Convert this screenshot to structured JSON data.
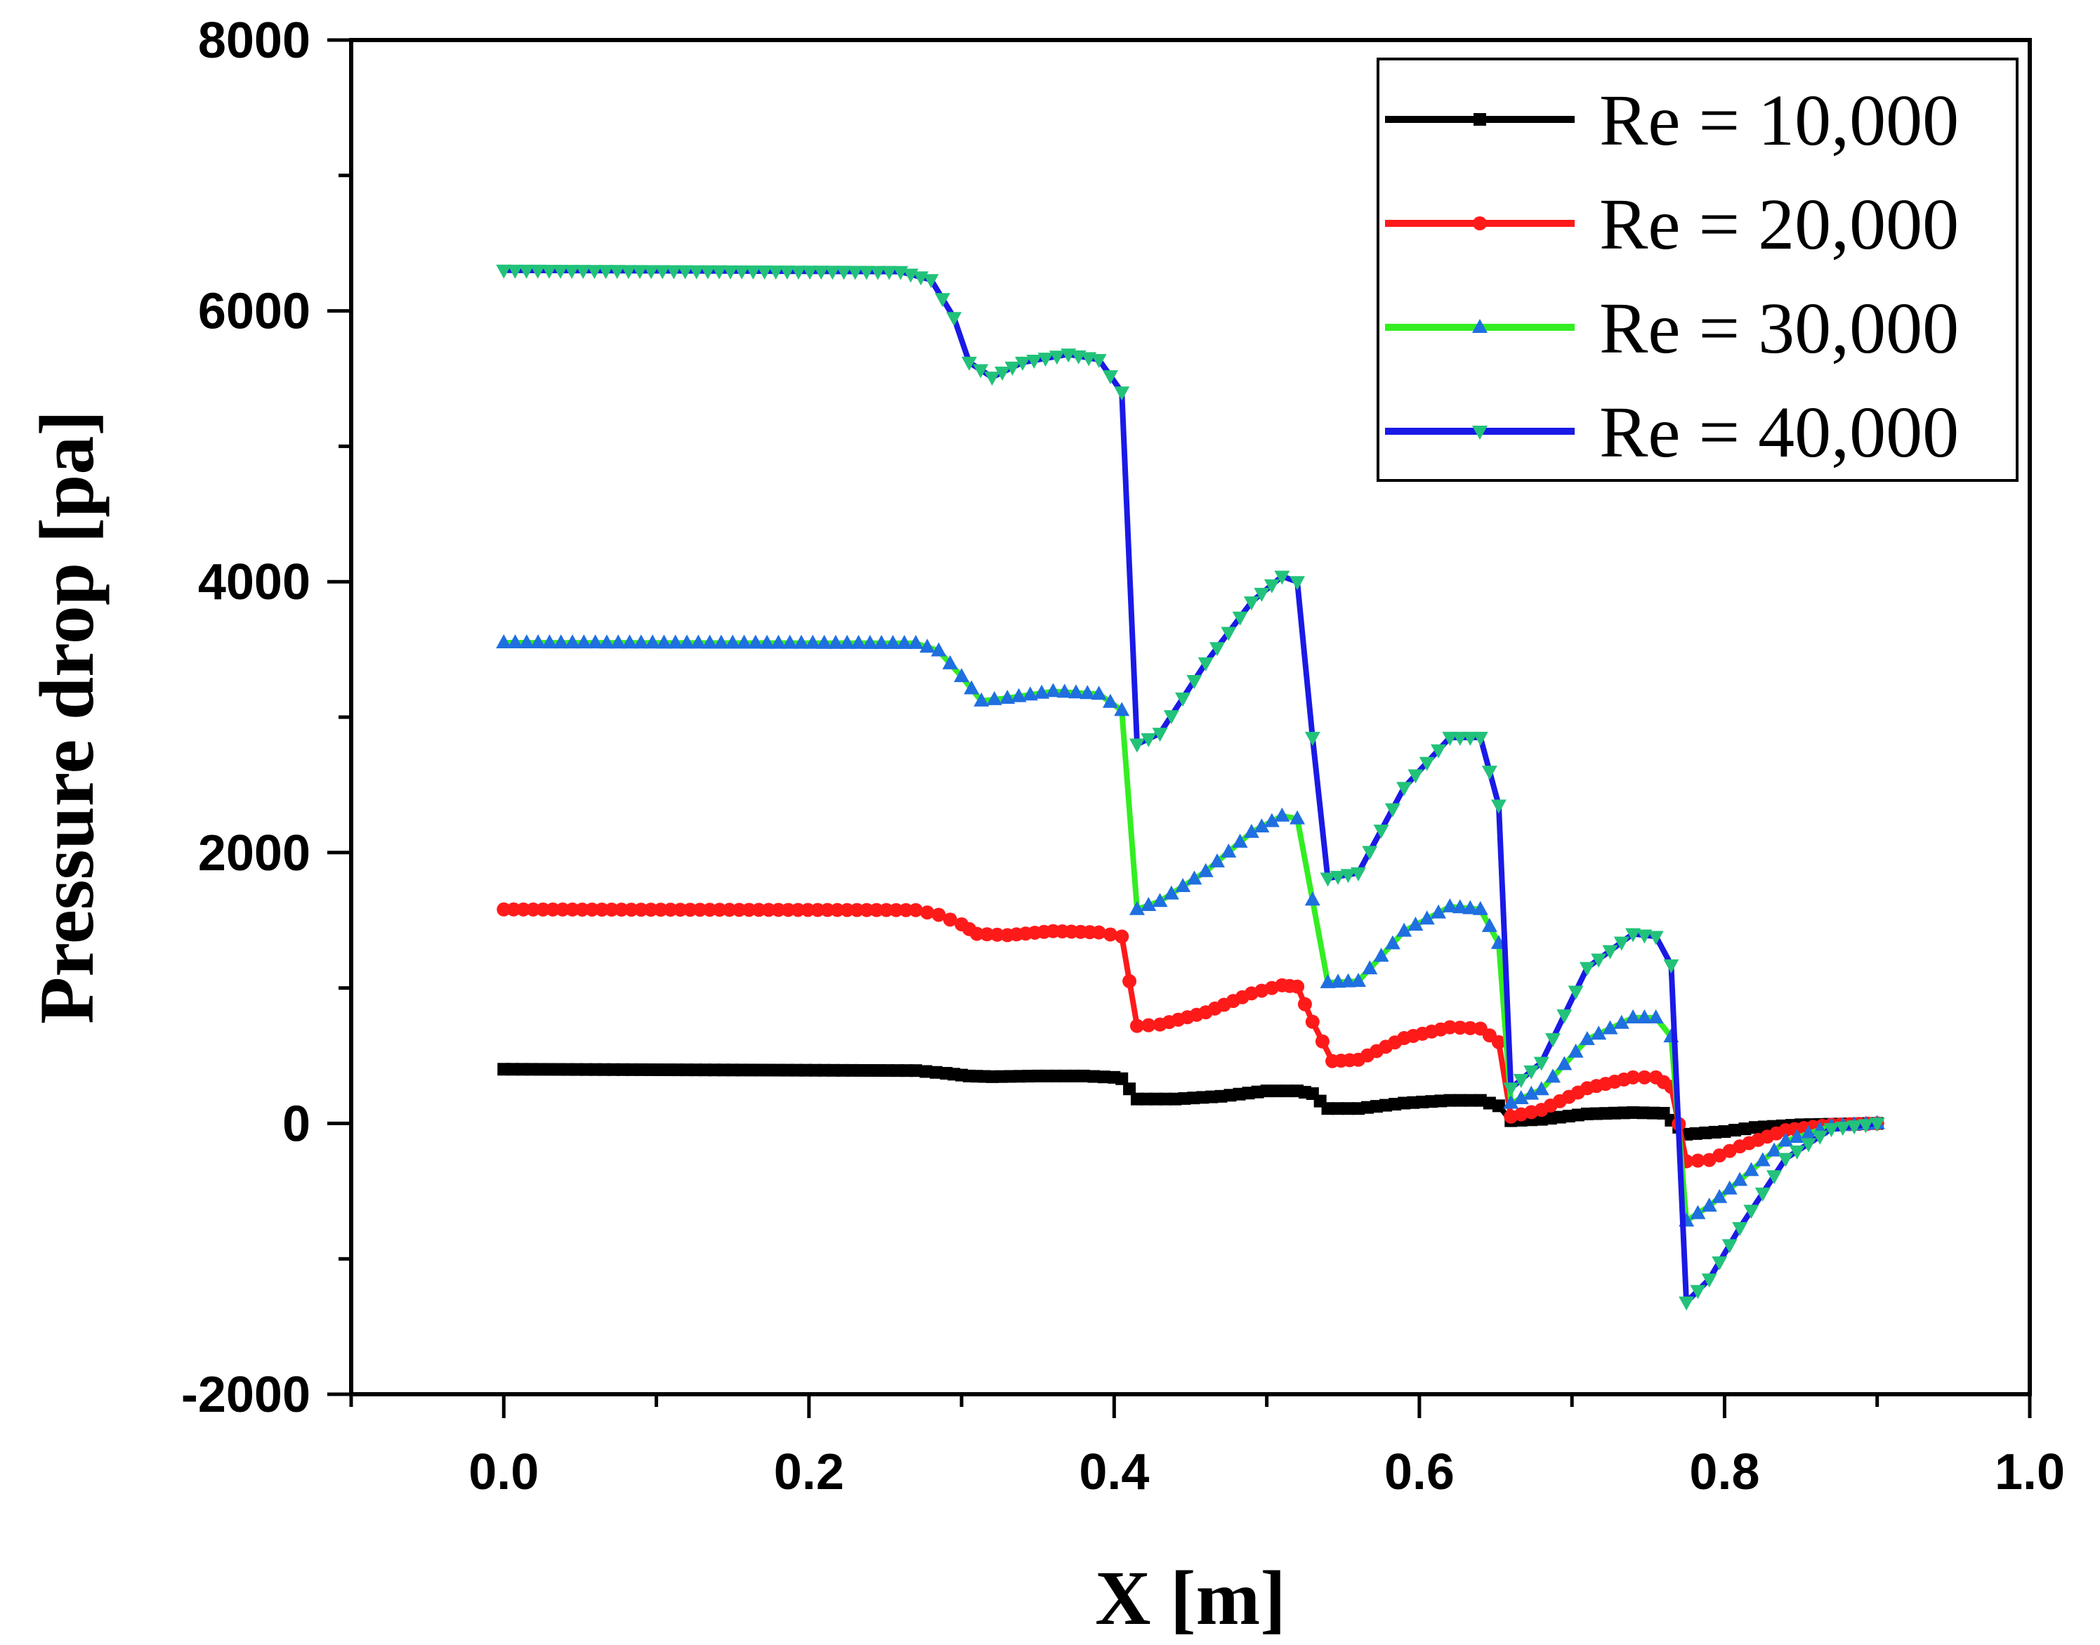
{
  "chart_data": {
    "type": "line",
    "xlabel": "X [m]",
    "ylabel": "Pressure drop [pa]",
    "xlim": [
      -0.1,
      1.0
    ],
    "ylim": [
      -2000,
      8000
    ],
    "xticks": [
      0.0,
      0.2,
      0.4,
      0.6,
      0.8,
      1.0
    ],
    "xtick_labels": [
      "0.0",
      "0.2",
      "0.4",
      "0.6",
      "0.8",
      "1.0"
    ],
    "yticks": [
      -2000,
      0,
      2000,
      4000,
      6000,
      8000
    ],
    "ytick_labels": [
      "-2000",
      "0",
      "2000",
      "4000",
      "6000",
      "8000"
    ],
    "legend_position": "top-right",
    "series": [
      {
        "name": "Re = 10,000",
        "color": "#000000",
        "marker": "square",
        "points": [
          [
            0,
            400
          ],
          [
            0.27,
            390
          ],
          [
            0.29,
            370
          ],
          [
            0.305,
            350
          ],
          [
            0.32,
            345
          ],
          [
            0.35,
            350
          ],
          [
            0.38,
            350
          ],
          [
            0.4,
            340
          ],
          [
            0.405,
            330
          ],
          [
            0.415,
            180
          ],
          [
            0.44,
            180
          ],
          [
            0.47,
            200
          ],
          [
            0.5,
            240
          ],
          [
            0.52,
            240
          ],
          [
            0.53,
            220
          ],
          [
            0.54,
            110
          ],
          [
            0.56,
            110
          ],
          [
            0.59,
            150
          ],
          [
            0.62,
            170
          ],
          [
            0.64,
            170
          ],
          [
            0.652,
            130
          ],
          [
            0.66,
            20
          ],
          [
            0.68,
            30
          ],
          [
            0.71,
            70
          ],
          [
            0.74,
            80
          ],
          [
            0.76,
            75
          ],
          [
            0.775,
            -80
          ],
          [
            0.8,
            -60
          ],
          [
            0.82,
            -30
          ],
          [
            0.85,
            -10
          ],
          [
            0.9,
            0
          ]
        ]
      },
      {
        "name": "Re = 20,000",
        "color": "#ff1a1a",
        "marker": "circle",
        "points": [
          [
            0,
            1580
          ],
          [
            0.27,
            1575
          ],
          [
            0.285,
            1540
          ],
          [
            0.3,
            1470
          ],
          [
            0.31,
            1400
          ],
          [
            0.33,
            1390
          ],
          [
            0.36,
            1420
          ],
          [
            0.39,
            1410
          ],
          [
            0.405,
            1380
          ],
          [
            0.415,
            720
          ],
          [
            0.43,
            730
          ],
          [
            0.46,
            820
          ],
          [
            0.49,
            960
          ],
          [
            0.51,
            1020
          ],
          [
            0.52,
            1010
          ],
          [
            0.53,
            750
          ],
          [
            0.543,
            460
          ],
          [
            0.56,
            470
          ],
          [
            0.59,
            630
          ],
          [
            0.62,
            710
          ],
          [
            0.64,
            700
          ],
          [
            0.652,
            600
          ],
          [
            0.66,
            50
          ],
          [
            0.68,
            100
          ],
          [
            0.71,
            260
          ],
          [
            0.74,
            340
          ],
          [
            0.755,
            340
          ],
          [
            0.765,
            270
          ],
          [
            0.775,
            -280
          ],
          [
            0.79,
            -270
          ],
          [
            0.81,
            -170
          ],
          [
            0.84,
            -50
          ],
          [
            0.87,
            -10
          ],
          [
            0.9,
            0
          ]
        ]
      },
      {
        "name": "Re = 30,000",
        "color": "#33ee22",
        "marker": "triangle-up",
        "points": [
          [
            0,
            3550
          ],
          [
            0.27,
            3545
          ],
          [
            0.285,
            3490
          ],
          [
            0.3,
            3300
          ],
          [
            0.313,
            3120
          ],
          [
            0.33,
            3140
          ],
          [
            0.36,
            3190
          ],
          [
            0.39,
            3170
          ],
          [
            0.405,
            3050
          ],
          [
            0.415,
            1580
          ],
          [
            0.43,
            1640
          ],
          [
            0.46,
            1860
          ],
          [
            0.49,
            2150
          ],
          [
            0.51,
            2270
          ],
          [
            0.52,
            2250
          ],
          [
            0.53,
            1650
          ],
          [
            0.54,
            1040
          ],
          [
            0.56,
            1050
          ],
          [
            0.59,
            1420
          ],
          [
            0.62,
            1600
          ],
          [
            0.64,
            1580
          ],
          [
            0.652,
            1330
          ],
          [
            0.66,
            150
          ],
          [
            0.68,
            250
          ],
          [
            0.71,
            620
          ],
          [
            0.74,
            780
          ],
          [
            0.755,
            780
          ],
          [
            0.765,
            640
          ],
          [
            0.775,
            -720
          ],
          [
            0.79,
            -610
          ],
          [
            0.81,
            -420
          ],
          [
            0.84,
            -130
          ],
          [
            0.87,
            -20
          ],
          [
            0.9,
            0
          ]
        ]
      },
      {
        "name": "Re = 40,000",
        "color": "#1a1ae6",
        "marker": "triangle-down",
        "points": [
          [
            0,
            6300
          ],
          [
            0.26,
            6290
          ],
          [
            0.28,
            6230
          ],
          [
            0.295,
            5950
          ],
          [
            0.305,
            5620
          ],
          [
            0.32,
            5510
          ],
          [
            0.34,
            5620
          ],
          [
            0.37,
            5680
          ],
          [
            0.39,
            5640
          ],
          [
            0.405,
            5400
          ],
          [
            0.415,
            2800
          ],
          [
            0.43,
            2880
          ],
          [
            0.46,
            3400
          ],
          [
            0.49,
            3850
          ],
          [
            0.51,
            4040
          ],
          [
            0.52,
            4000
          ],
          [
            0.53,
            2850
          ],
          [
            0.54,
            1810
          ],
          [
            0.56,
            1850
          ],
          [
            0.59,
            2480
          ],
          [
            0.62,
            2850
          ],
          [
            0.64,
            2850
          ],
          [
            0.652,
            2350
          ],
          [
            0.66,
            260
          ],
          [
            0.68,
            450
          ],
          [
            0.71,
            1150
          ],
          [
            0.74,
            1400
          ],
          [
            0.755,
            1380
          ],
          [
            0.765,
            1170
          ],
          [
            0.775,
            -1320
          ],
          [
            0.79,
            -1150
          ],
          [
            0.81,
            -770
          ],
          [
            0.84,
            -260
          ],
          [
            0.87,
            -40
          ],
          [
            0.9,
            0
          ]
        ]
      }
    ]
  }
}
